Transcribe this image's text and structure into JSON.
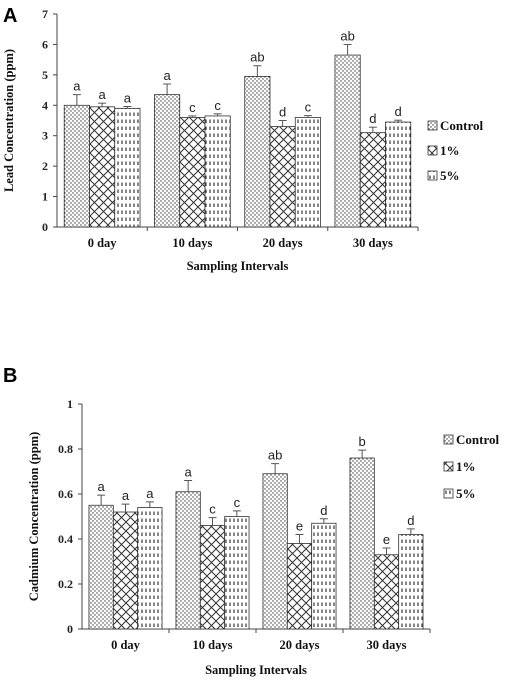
{
  "chart_data": [
    {
      "panel": "A",
      "type": "bar",
      "categories": [
        "0 day",
        "10 days",
        "20 days",
        "30 days"
      ],
      "xlabel": "Sampling Intervals",
      "ylabel": "Lead Concentration (ppm)",
      "ylim": [
        0,
        7
      ],
      "yticks": [
        "0",
        "1",
        "2",
        "3",
        "4",
        "5",
        "6",
        "7"
      ],
      "legend": "right",
      "grid": false,
      "series": [
        {
          "name": "Control",
          "pattern": "dots",
          "values": [
            4.0,
            4.35,
            4.95,
            5.65
          ],
          "errors": [
            0.35,
            0.35,
            0.35,
            0.35
          ],
          "labels": [
            "a",
            "a",
            "ab",
            "ab"
          ]
        },
        {
          "name": "1%",
          "pattern": "cross",
          "values": [
            3.95,
            3.6,
            3.3,
            3.1
          ],
          "errors": [
            0.12,
            0.05,
            0.2,
            0.18
          ],
          "labels": [
            "a",
            "c",
            "d",
            "d"
          ]
        },
        {
          "name": "5%",
          "pattern": "dash",
          "values": [
            3.9,
            3.65,
            3.6,
            3.45
          ],
          "errors": [
            0.06,
            0.07,
            0.06,
            0.06
          ],
          "labels": [
            "a",
            "c",
            "c",
            "d"
          ]
        }
      ]
    },
    {
      "panel": "B",
      "type": "bar",
      "categories": [
        "0 day",
        "10 days",
        "20 days",
        "30 days"
      ],
      "xlabel": "Sampling Intervals",
      "ylabel": "Cadmium Concentration (ppm)",
      "ylim": [
        0,
        1
      ],
      "yticks": [
        "0",
        "0.2",
        "0.4",
        "0.6",
        "0.8",
        "1"
      ],
      "legend": "right",
      "grid": false,
      "series": [
        {
          "name": "Control",
          "pattern": "dots",
          "values": [
            0.55,
            0.61,
            0.69,
            0.76
          ],
          "errors": [
            0.045,
            0.05,
            0.045,
            0.035
          ],
          "labels": [
            "a",
            "a",
            "ab",
            "b"
          ]
        },
        {
          "name": "1%",
          "pattern": "cross",
          "values": [
            0.52,
            0.46,
            0.38,
            0.33
          ],
          "errors": [
            0.035,
            0.035,
            0.04,
            0.03
          ],
          "labels": [
            "a",
            "c",
            "e",
            "e"
          ]
        },
        {
          "name": "5%",
          "pattern": "dash",
          "values": [
            0.54,
            0.5,
            0.47,
            0.42
          ],
          "errors": [
            0.025,
            0.025,
            0.02,
            0.025
          ],
          "labels": [
            "a",
            "c",
            "d",
            "d"
          ]
        }
      ]
    }
  ]
}
